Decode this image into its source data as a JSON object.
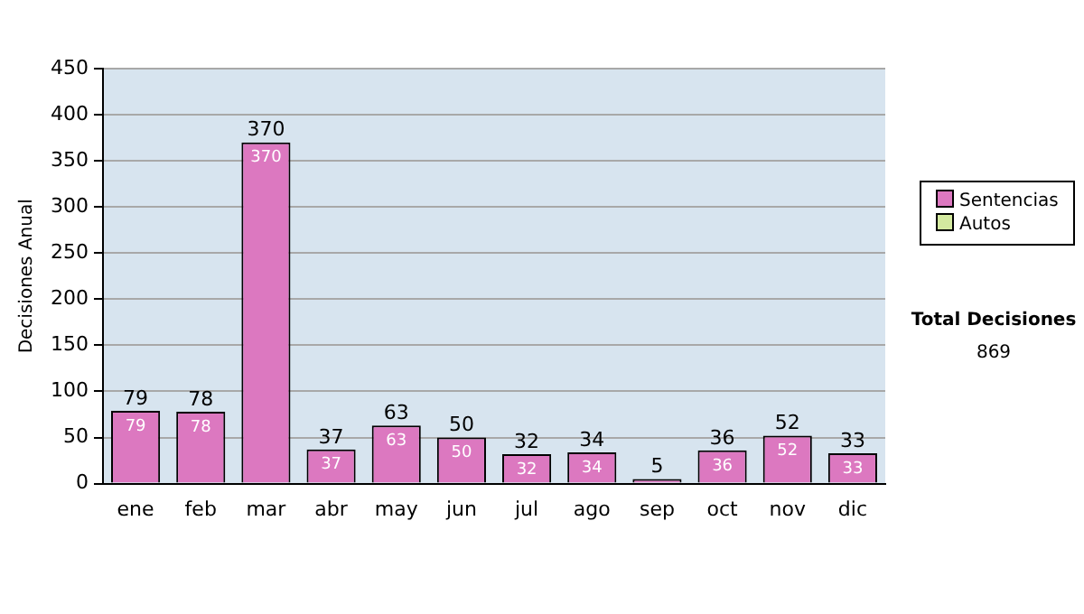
{
  "chart_data": {
    "type": "bar",
    "ylabel": "Decisiones Anual",
    "categories": [
      "ene",
      "feb",
      "mar",
      "abr",
      "may",
      "jun",
      "jul",
      "ago",
      "sep",
      "oct",
      "nov",
      "dic"
    ],
    "series": [
      {
        "name": "Sentencias",
        "color": "#dc78c0",
        "values": [
          79,
          78,
          370,
          37,
          63,
          50,
          32,
          34,
          5,
          36,
          52,
          33
        ],
        "value_labels": [
          "79",
          "78",
          "370",
          "37",
          "63",
          "50",
          "32",
          "34",
          null,
          "36",
          "52",
          "33"
        ]
      },
      {
        "name": "Autos",
        "color": "#d4eaa0",
        "values": [
          0,
          0,
          0,
          0,
          0,
          0,
          0,
          0,
          0,
          0,
          0,
          0
        ]
      }
    ],
    "stacked": true,
    "totals": [
      "79",
      "78",
      "370",
      "37",
      "63",
      "50",
      "32",
      "34",
      "5",
      "36",
      "52",
      "33"
    ],
    "ylim": [
      0,
      450
    ],
    "yticks": [
      0,
      50,
      100,
      150,
      200,
      250,
      300,
      350,
      400,
      450
    ],
    "grid": "y",
    "legend": "right",
    "annotations": [
      "Total Decisiones",
      "869"
    ]
  }
}
